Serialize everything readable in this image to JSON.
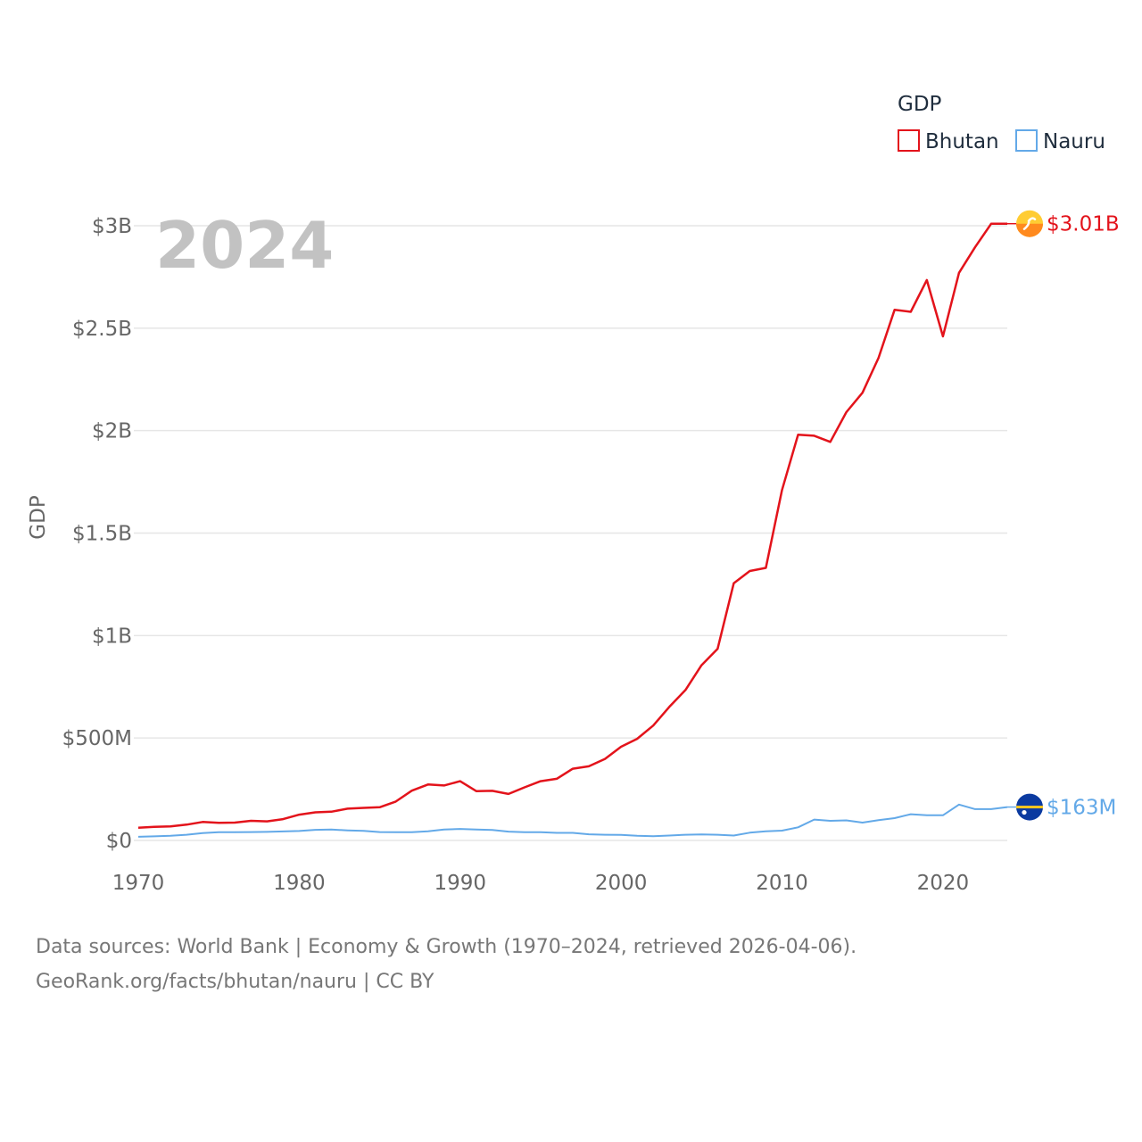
{
  "chart_data": {
    "type": "line",
    "title": "GDP",
    "ylabel": "GDP",
    "xlabel": "",
    "current_year_label": "2024",
    "xlim": [
      1970,
      2024
    ],
    "ylim": [
      0,
      3000
    ],
    "y_unit": "USD millions",
    "x_ticks": [
      "1970",
      "1980",
      "1990",
      "2000",
      "2010",
      "2020"
    ],
    "y_ticks": [
      {
        "value": 0,
        "label": "$0"
      },
      {
        "value": 500,
        "label": "$500M"
      },
      {
        "value": 1000,
        "label": "$1B"
      },
      {
        "value": 1500,
        "label": "$1.5B"
      },
      {
        "value": 2000,
        "label": "$2B"
      },
      {
        "value": 2500,
        "label": "$2.5B"
      },
      {
        "value": 3000,
        "label": "$3B"
      }
    ],
    "legend": {
      "title": "GDP",
      "placement": "top-right"
    },
    "x": [
      1970,
      1971,
      1972,
      1973,
      1974,
      1975,
      1976,
      1977,
      1978,
      1979,
      1980,
      1981,
      1982,
      1983,
      1984,
      1985,
      1986,
      1987,
      1988,
      1989,
      1990,
      1991,
      1992,
      1993,
      1994,
      1995,
      1996,
      1997,
      1998,
      1999,
      2000,
      2001,
      2002,
      2003,
      2004,
      2005,
      2006,
      2007,
      2008,
      2009,
      2010,
      2011,
      2012,
      2013,
      2014,
      2015,
      2016,
      2017,
      2018,
      2019,
      2020,
      2021,
      2022,
      2023,
      2024
    ],
    "series": [
      {
        "name": "Bhutan",
        "color": "#e3131b",
        "end_label": "$3.01B",
        "flag_icon": "bhutan-flag-icon",
        "values": [
          62,
          66,
          69,
          77,
          90,
          86,
          87,
          96,
          93,
          104,
          126,
          137,
          140,
          155,
          159,
          162,
          190,
          243,
          273,
          268,
          289,
          241,
          242,
          227,
          259,
          289,
          301,
          350,
          362,
          398,
          457,
          496,
          561,
          652,
          734,
          855,
          935,
          1255,
          1315,
          1330,
          1710,
          1980,
          1975,
          1945,
          2090,
          2185,
          2355,
          2590,
          2580,
          2735,
          2460,
          2770,
          2895,
          3010,
          3010
        ]
      },
      {
        "name": "Nauru",
        "color": "#63a9e8",
        "end_label": "$163M",
        "flag_icon": "nauru-flag-icon",
        "values": [
          18,
          20,
          23,
          28,
          36,
          40,
          40,
          41,
          42,
          44,
          46,
          52,
          53,
          49,
          47,
          41,
          40,
          40,
          45,
          53,
          56,
          53,
          51,
          43,
          40,
          40,
          37,
          37,
          30,
          28,
          27,
          23,
          21,
          24,
          28,
          29,
          28,
          24,
          38,
          45,
          48,
          64,
          102,
          96,
          98,
          87,
          99,
          109,
          128,
          123,
          123,
          175,
          153,
          153,
          163
        ]
      }
    ]
  },
  "footer": {
    "line1": "Data sources: World Bank | Economy & Growth (1970–2024, retrieved 2026-04-06).",
    "line2": "GeoRank.org/facts/bhutan/nauru | CC BY"
  }
}
